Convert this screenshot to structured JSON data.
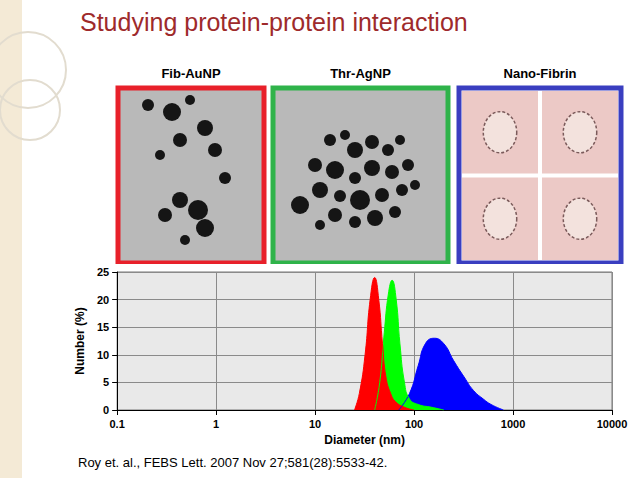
{
  "slide": {
    "title": "Studying protein-protein interaction",
    "panels": [
      "Fib-AuNP",
      "Thr-AgNP",
      "Nano-Fibrin"
    ],
    "citation": "Roy et. al., FEBS Lett. 2007 Nov 27;581(28):5533-42."
  },
  "chart_data": {
    "type": "area",
    "x_label": "Diameter (nm)",
    "y_label": "Number (%)",
    "log": "x",
    "grid": true,
    "xlim": [
      0.1,
      10000
    ],
    "xticks": [
      0.1,
      1,
      10,
      100,
      1000,
      10000
    ],
    "ylim": [
      0,
      25
    ],
    "yticks": [
      0,
      5,
      10,
      15,
      20,
      25
    ],
    "series": [
      {
        "name": "Nano-Fibrin",
        "color": "#0000ff",
        "x": [
          70,
          90,
          110,
          130,
          160,
          200,
          250,
          320,
          400,
          500,
          600,
          800
        ],
        "values": [
          0,
          3,
          8,
          12,
          13,
          12,
          9,
          6,
          3.5,
          2,
          1,
          0
        ]
      },
      {
        "name": "Thr-AgNP",
        "color": "#00ff00",
        "x": [
          40,
          45,
          50,
          55,
          60,
          66,
          72,
          80,
          90,
          110,
          150,
          200
        ],
        "values": [
          0,
          5,
          14,
          21,
          23.5,
          20,
          12,
          5,
          2,
          1,
          0.5,
          0
        ]
      },
      {
        "name": "Fib-AuNP",
        "color": "#ff0000",
        "x": [
          25,
          28,
          32,
          36,
          40,
          44,
          48,
          52,
          58,
          65,
          80,
          100
        ],
        "values": [
          0,
          3,
          10,
          20,
          24,
          20,
          12,
          6,
          3,
          1.5,
          0.5,
          0
        ]
      }
    ]
  }
}
